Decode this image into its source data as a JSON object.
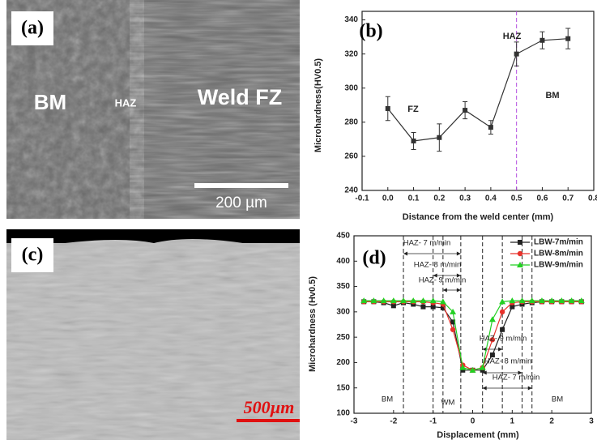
{
  "panels": [
    {
      "label": "(a)",
      "texts": [
        "BM",
        "HAZ",
        "Weld FZ"
      ],
      "scale_bar": "200 µm"
    },
    {
      "label": "(c)",
      "scale_bar": "500µm"
    }
  ],
  "chart_data": [
    {
      "type": "line",
      "panel_label": "(b)",
      "xlabel": "Distance from the weld center (mm)",
      "ylabel": "Microhardness(HV0.5)",
      "x": [
        0,
        0.1,
        0.2,
        0.3,
        0.4,
        0.5,
        0.6,
        0.7
      ],
      "series": [
        {
          "color": "#333333",
          "marker": "square",
          "values": [
            288,
            269,
            271,
            287,
            277,
            320,
            328,
            329
          ],
          "errors": [
            7,
            5,
            8,
            5,
            4,
            7,
            5,
            6
          ]
        }
      ],
      "xlim": [
        -0.1,
        0.8
      ],
      "xticks": [
        -0.1,
        {
          "value": 0,
          "label": "0.0"
        },
        0.1,
        0.2,
        0.3,
        0.4,
        0.5,
        0.6,
        0.7,
        0.8
      ],
      "ylim": [
        240,
        345
      ],
      "yticks": [
        240,
        260,
        280,
        300,
        320,
        340
      ],
      "vlines": [
        0.5
      ],
      "vline_color": "#b44ce0",
      "annotations": [
        "FZ",
        "HAZ",
        "BM"
      ]
    },
    {
      "type": "line",
      "panel_label": "(d)",
      "xlabel": "Displacement (mm)",
      "ylabel": "Microhardness (Hv0.5)",
      "x": [
        -2.75,
        -2.5,
        -2.25,
        -2,
        -1.75,
        -1.5,
        -1.25,
        -1,
        -0.75,
        -0.5,
        -0.25,
        0,
        0.25,
        0.5,
        0.75,
        1,
        1.25,
        1.5,
        1.75,
        2,
        2.25,
        2.5,
        2.75
      ],
      "series": [
        {
          "name": "LBW-7m/min",
          "color": "#222222",
          "marker": "square",
          "values": [
            320,
            320,
            318,
            312,
            318,
            315,
            310,
            310,
            308,
            280,
            185,
            185,
            185,
            215,
            265,
            310,
            315,
            318,
            320,
            320,
            320,
            320,
            320
          ]
        },
        {
          "name": "LBW-8m/min",
          "color": "#e8322b",
          "marker": "circle",
          "values": [
            320,
            320,
            320,
            320,
            320,
            320,
            320,
            318,
            315,
            265,
            195,
            185,
            190,
            245,
            300,
            318,
            320,
            320,
            320,
            320,
            320,
            320,
            320
          ]
        },
        {
          "name": "LBW-9m/min",
          "color": "#22d022",
          "marker": "triangle",
          "values": [
            322,
            322,
            322,
            322,
            322,
            322,
            322,
            322,
            320,
            300,
            190,
            185,
            190,
            285,
            320,
            322,
            322,
            322,
            322,
            322,
            322,
            322,
            322
          ]
        }
      ],
      "xlim": [
        -3,
        3
      ],
      "xticks": [
        -3,
        -2,
        -1,
        0,
        1,
        2,
        3
      ],
      "ylim": [
        100,
        450
      ],
      "yticks": [
        100,
        150,
        200,
        250,
        300,
        350,
        400,
        450
      ],
      "legend": "upper right",
      "vlines": [
        -1.75,
        -1,
        -0.75,
        -0.3,
        0.25,
        0.75,
        1.25,
        1.5
      ],
      "vline_color": "#222222",
      "annotations": [
        "HAZ- 7 m/min",
        "HAZ- 8 m/min",
        "HAZ- 9 m/min",
        "HAZ- 9 m/min",
        "HAZ- 8 m/min",
        "HAZ- 7 m/min",
        "BM",
        "WM",
        "BM"
      ]
    }
  ]
}
